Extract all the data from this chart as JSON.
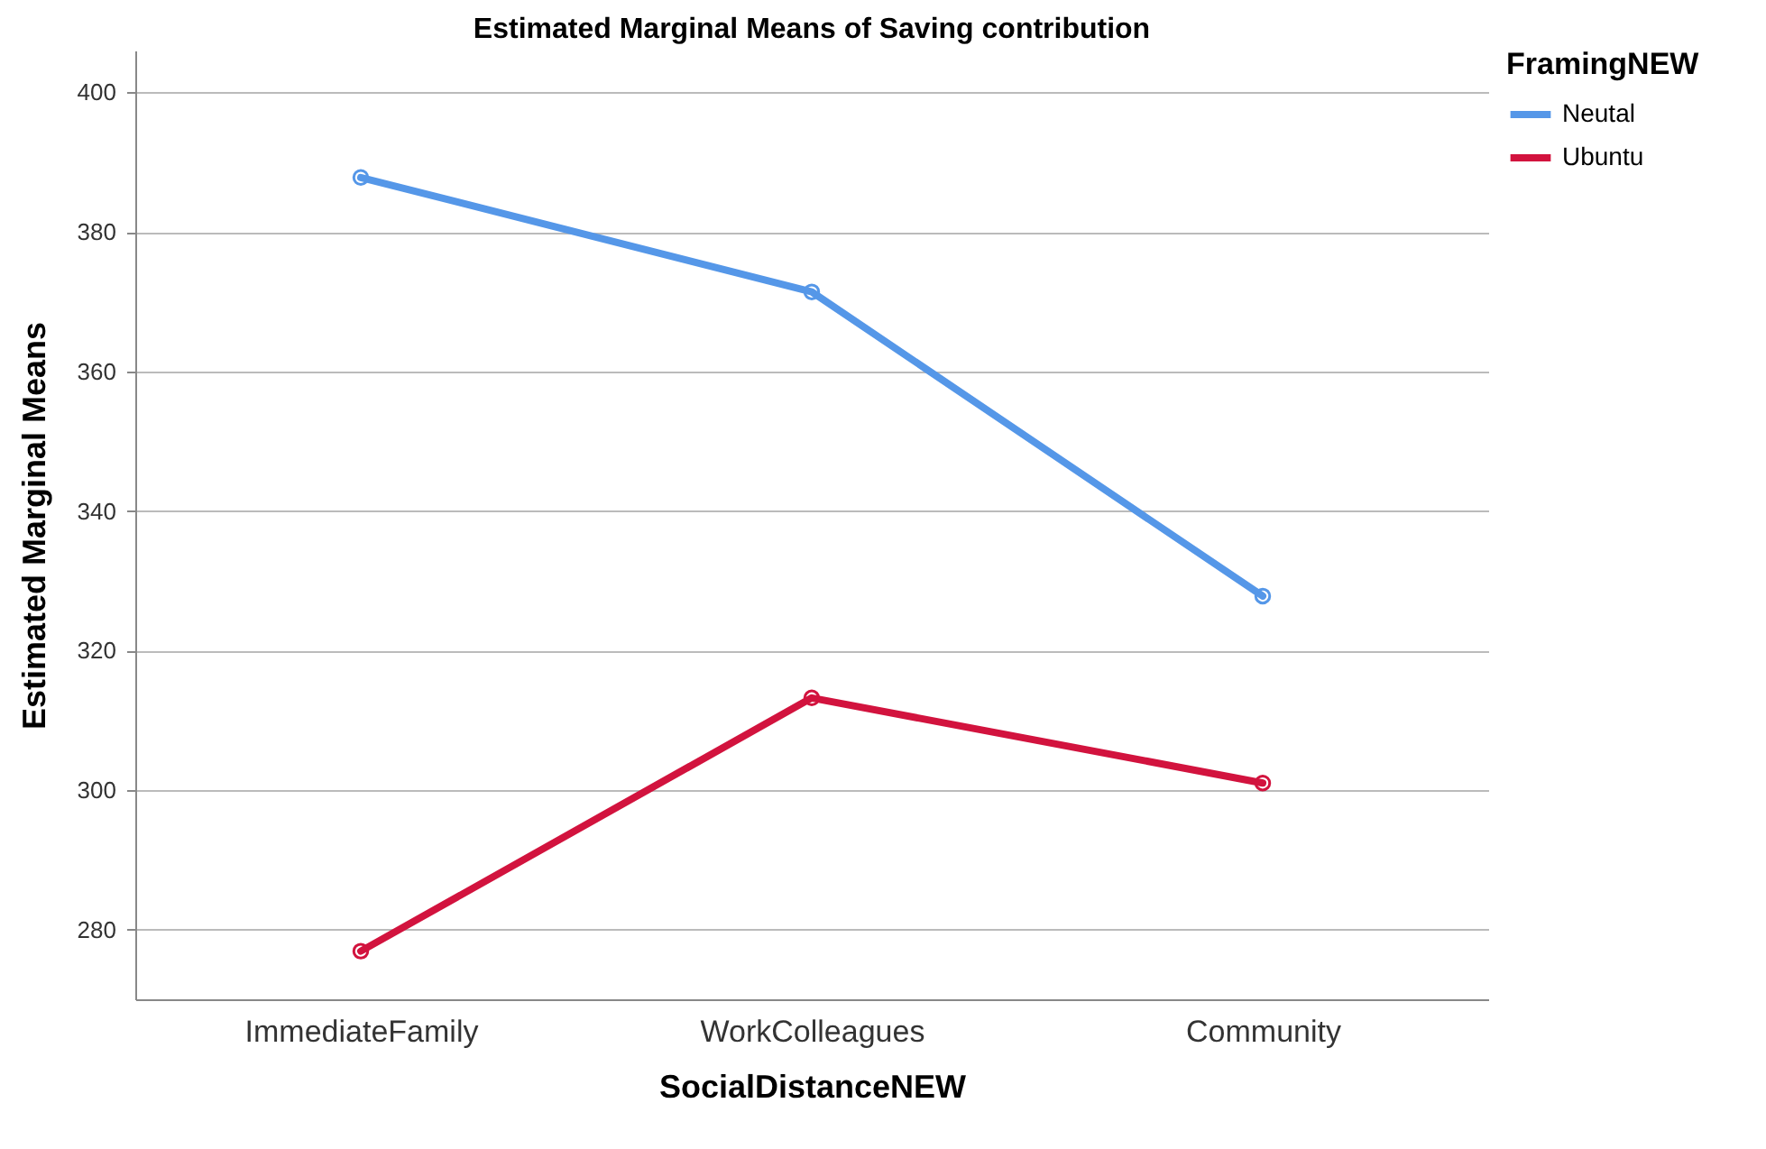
{
  "chart_data": {
    "type": "line",
    "title": "Estimated Marginal Means of Saving contribution",
    "xlabel": "SocialDistanceNEW",
    "ylabel": "Estimated Marginal Means",
    "legend_title": "FramingNEW",
    "categories": [
      "ImmediateFamily",
      "WorkColleagues",
      "Community"
    ],
    "series": [
      {
        "name": "Neutal",
        "color": "#5597e8",
        "values": [
          387.8,
          371.4,
          327.8
        ]
      },
      {
        "name": "Ubuntu",
        "color": "#d2133e",
        "values": [
          276.9,
          313.2,
          301.0
        ]
      }
    ],
    "ylim": [
      270,
      406
    ],
    "yticks": [
      280,
      300,
      320,
      340,
      360,
      380,
      400
    ],
    "grid": "y",
    "legend": "top right",
    "marker": "circle",
    "line_style": "solid"
  }
}
